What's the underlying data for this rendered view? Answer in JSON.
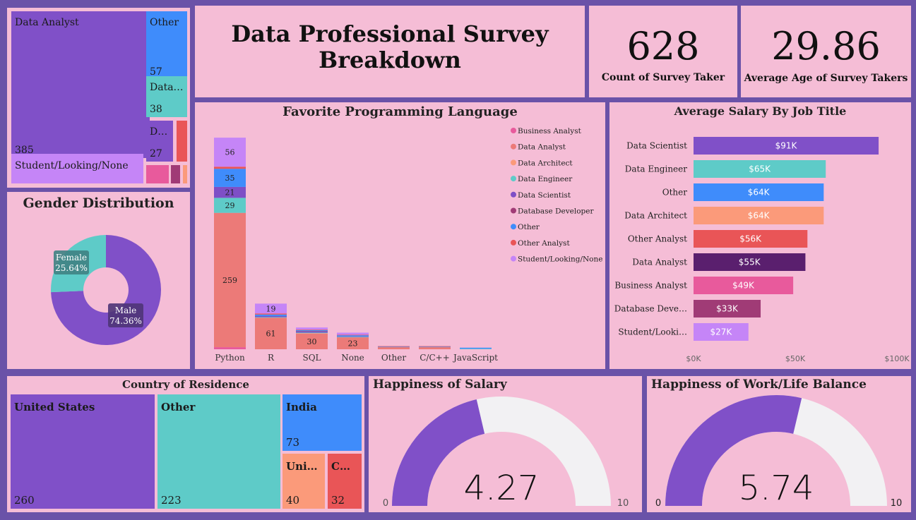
{
  "header": {
    "title_line1": "Data Professional Survey",
    "title_line2": "Breakdown",
    "count_value": "628",
    "count_label": "Count of Survey Taker",
    "age_value": "29.86",
    "age_label": "Average Age of Survey Takers"
  },
  "colors": {
    "Business Analyst": "#e85a9c",
    "Data Analyst": "#ec7a78",
    "Data Architect": "#fb9a7a",
    "Data Engineer": "#5ecbc8",
    "Data Scientist": "#7e4fc6",
    "Database Developer": "#a03b76",
    "Other": "#3f8cfb",
    "Other Analyst": "#e95557",
    "Student/Looking/None": "#c585f7"
  },
  "job_treemap": {
    "cells": [
      {
        "label": "Data Analyst",
        "value": "385",
        "color": "#8050c8"
      },
      {
        "label": "Other",
        "value": "57",
        "color": "#3f8cfb"
      },
      {
        "label": "Data…",
        "value": "38",
        "color": "#5ecbc8"
      },
      {
        "label": "D…",
        "value": "27",
        "color": "#8050c8"
      },
      {
        "label": "Student/Looking/None",
        "value": "",
        "color": "#c585f7"
      }
    ]
  },
  "gender": {
    "title": "Gender Distribution",
    "female_label": "Female",
    "female_pct": "25.64%",
    "male_label": "Male",
    "male_pct": "74.36%",
    "female_share": 25.64
  },
  "country": {
    "title": "Country of Residence",
    "cells": [
      {
        "label": "United States",
        "value": "260"
      },
      {
        "label": "Other",
        "value": "223"
      },
      {
        "label": "India",
        "value": "73"
      },
      {
        "label": "Uni…",
        "value": "40"
      },
      {
        "label": "C…",
        "value": "32"
      }
    ]
  },
  "gauges": {
    "salary": {
      "title": "Happiness of Salary",
      "value": "4.27",
      "min": "0",
      "max": "10",
      "numeric": 4.27
    },
    "worklife": {
      "title": "Happiness of Work/Life Balance",
      "value": "5.74",
      "min": "0",
      "max": "10",
      "numeric": 5.74
    }
  },
  "chart_data": [
    {
      "type": "bar",
      "stacked": true,
      "title": "Favorite Programming Language",
      "categories": [
        "Python",
        "R",
        "SQL",
        "None",
        "Other",
        "C/C++",
        "JavaScript"
      ],
      "series": [
        {
          "name": "Business Analyst",
          "values": [
            4,
            0,
            0,
            0,
            0,
            0,
            0
          ]
        },
        {
          "name": "Data Analyst",
          "values": [
            259,
            61,
            30,
            23,
            4,
            4,
            0
          ]
        },
        {
          "name": "Data Architect",
          "values": [
            0,
            0,
            1,
            0,
            0,
            0,
            0
          ]
        },
        {
          "name": "Data Engineer",
          "values": [
            29,
            1,
            1,
            1,
            0,
            0,
            1
          ]
        },
        {
          "name": "Data Scientist",
          "values": [
            21,
            2,
            2,
            1,
            0,
            0,
            0
          ]
        },
        {
          "name": "Database Developer",
          "values": [
            0,
            0,
            1,
            0,
            0,
            0,
            0
          ]
        },
        {
          "name": "Other",
          "values": [
            35,
            3,
            2,
            2,
            1,
            1,
            2
          ]
        },
        {
          "name": "Other Analyst",
          "values": [
            4,
            2,
            1,
            1,
            1,
            1,
            0
          ]
        },
        {
          "name": "Student/Looking/None",
          "values": [
            56,
            19,
            4,
            4,
            0,
            0,
            0
          ]
        }
      ],
      "data_labels": {
        "Python": {
          "Data Analyst": "259",
          "Data Engineer": "29",
          "Data Scientist": "21",
          "Other": "35",
          "Student/Looking/None": "56"
        },
        "R": {
          "Data Analyst": "61",
          "Student/Looking/None": "19"
        },
        "SQL": {
          "Data Analyst": "30"
        },
        "None": {
          "Data Analyst": "23"
        }
      },
      "ylim": [
        0,
        450
      ],
      "legend_position": "right"
    },
    {
      "type": "bar",
      "orientation": "horizontal",
      "title": "Average Salary By Job Title",
      "categories": [
        "Data Scientist",
        "Data Engineer",
        "Other",
        "Data Architect",
        "Other Analyst",
        "Data Analyst",
        "Business Analyst",
        "Database Deve…",
        "Student/Looki…"
      ],
      "values": [
        91,
        65,
        64,
        64,
        56,
        55,
        49,
        33,
        27
      ],
      "labels": [
        "$91K",
        "$65K",
        "$64K",
        "$64K",
        "$56K",
        "$55K",
        "$49K",
        "$33K",
        "$27K"
      ],
      "colors": [
        "#8050c8",
        "#5ecbc8",
        "#3f8cfb",
        "#fb9a7a",
        "#e95557",
        "#5a1f6e",
        "#e85a9c",
        "#a03b76",
        "#c585f7"
      ],
      "xlim": [
        0,
        100
      ],
      "xticks": [
        "$0K",
        "$50K",
        "$100K"
      ]
    }
  ]
}
